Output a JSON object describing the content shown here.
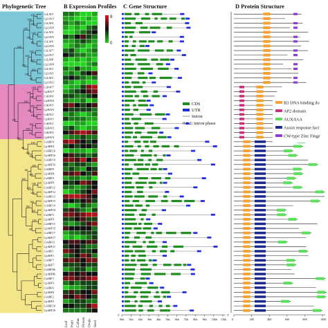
{
  "panels": {
    "a_title": "Phylogenetic Tree",
    "b_title": "B Expression Profiles",
    "c_title": "C Gene Structure",
    "d_title": "D Protein Structure"
  },
  "tree": {
    "leaves": [
      "CsLAV3",
      "CpLAV3",
      "CsLAV4",
      "CpLAV4",
      "CsLAV5",
      "CpLAV5",
      "CsLAV6",
      "CpLAV6",
      "CsLAV7",
      "CpLAV7",
      "CsLAV8",
      "CpLAV8",
      "CsLAV1",
      "CpLAV1",
      "CsLAV2",
      "CpLAV2",
      "CsRAV7",
      "CpRAV7",
      "CsRAV6",
      "CpRAV6",
      "CsRAV5",
      "CpRAV5",
      "CsRAV1",
      "CpRAV1",
      "CsRAV2",
      "CpRAV2",
      "CsRAV4",
      "CpRAV4",
      "CsARF4",
      "CpARF4",
      "CsARF16",
      "CpARF16",
      "CsARF10",
      "CpARF10",
      "CsARF8",
      "CpARF8",
      "CsARF9",
      "CpARF9",
      "CsARF12",
      "CpARF12",
      "CsARF13",
      "CpARF13",
      "CsARF14",
      "CpARF14",
      "CsARF5",
      "CpARF5",
      "CsARF15",
      "CpARF15",
      "CsARF17",
      "CpARF17",
      "CsARF11",
      "CpARF11",
      "CsARF1",
      "CpARF1",
      "CsARF7",
      "CpARF7",
      "CsARF8b",
      "CpARF8b",
      "CsARF3",
      "CpARF3",
      "CsARF6",
      "CpARF6",
      "CsARF2",
      "CpARF2",
      "CsARF18",
      "CpARF18"
    ],
    "bootstrap": [
      "100",
      "100",
      "100",
      "100",
      "80",
      "100",
      "100",
      "100",
      "100",
      "100",
      "100",
      "96",
      "100",
      "100",
      "100",
      "100",
      "98",
      "100",
      "100",
      "100",
      "100",
      "100",
      "100",
      "94",
      "100",
      "100",
      "100",
      "100",
      "98",
      "100",
      "100",
      "100",
      "100",
      "88",
      "100",
      "100",
      "100",
      "100",
      "100",
      "100",
      "100",
      "100",
      "85"
    ],
    "group_colors": [
      "#7dc8d8",
      "#e48ac0",
      "#f2e58a"
    ]
  },
  "expression": {
    "tissues": [
      "Leaf",
      "Fruit",
      "Callus",
      "Flower",
      "Ovule",
      "Seed"
    ],
    "color_scale": {
      "max_label": "8",
      "min_label": "0",
      "high": "#e6151b",
      "mid": "#111111",
      "low": "#22d61e"
    },
    "values": [
      [
        2,
        2,
        1,
        0,
        0,
        1
      ],
      [
        1,
        1,
        0,
        0,
        1,
        0
      ],
      [
        2,
        1,
        2,
        1,
        0,
        0
      ],
      [
        1,
        0,
        1,
        0,
        2,
        3
      ],
      [
        0,
        0,
        1,
        2,
        3,
        4
      ],
      [
        3,
        2,
        4,
        5,
        3,
        2
      ],
      [
        1,
        1,
        2,
        3,
        2,
        1
      ],
      [
        0,
        1,
        2,
        1,
        0,
        1
      ],
      [
        2,
        3,
        1,
        0,
        1,
        2
      ],
      [
        4,
        3,
        2,
        2,
        1,
        1
      ],
      [
        1,
        0,
        1,
        0,
        1,
        0
      ],
      [
        0,
        0,
        0,
        0,
        1,
        2
      ],
      [
        2,
        1,
        3,
        1,
        1,
        0
      ],
      [
        1,
        2,
        1,
        3,
        4,
        5
      ],
      [
        3,
        4,
        3,
        2,
        1,
        2
      ],
      [
        2,
        1,
        0,
        1,
        0,
        0
      ],
      [
        0,
        1,
        1,
        3,
        6,
        7
      ],
      [
        1,
        2,
        3,
        4,
        5,
        6
      ],
      [
        3,
        3,
        2,
        2,
        3,
        4
      ],
      [
        2,
        1,
        1,
        2,
        0,
        1
      ],
      [
        5,
        6,
        4,
        3,
        4,
        5
      ],
      [
        4,
        3,
        3,
        3,
        3,
        2
      ],
      [
        1,
        2,
        1,
        0,
        1,
        2
      ],
      [
        3,
        2,
        2,
        2,
        1,
        1
      ],
      [
        0,
        0,
        1,
        1,
        0,
        0
      ],
      [
        2,
        3,
        1,
        0,
        1,
        1
      ],
      [
        4,
        5,
        6,
        7,
        6,
        5
      ],
      [
        1,
        2,
        2,
        3,
        2,
        2
      ],
      [
        6,
        7,
        5,
        4,
        3,
        4
      ],
      [
        3,
        4,
        3,
        4,
        4,
        3
      ],
      [
        0,
        1,
        1,
        1,
        0,
        1
      ],
      [
        4,
        5,
        3,
        3,
        2,
        3
      ],
      [
        6,
        6,
        5,
        7,
        4,
        6
      ],
      [
        3,
        2,
        3,
        3,
        2,
        1
      ],
      [
        2,
        3,
        2,
        1,
        4,
        3
      ],
      [
        5,
        5,
        6,
        4,
        3,
        5
      ],
      [
        1,
        2,
        2,
        1,
        2,
        0
      ],
      [
        4,
        3,
        4,
        6,
        5,
        4
      ],
      [
        2,
        2,
        1,
        2,
        3,
        4
      ],
      [
        0,
        1,
        2,
        3,
        4,
        6
      ],
      [
        6,
        7,
        7,
        6,
        5,
        4
      ],
      [
        4,
        4,
        3,
        4,
        5,
        3
      ],
      [
        1,
        0,
        1,
        3,
        2,
        1
      ],
      [
        3,
        5,
        3,
        2,
        1,
        3
      ],
      [
        6,
        6,
        5,
        6,
        7,
        7
      ],
      [
        3,
        3,
        4,
        5,
        3,
        3
      ],
      [
        2,
        1,
        2,
        3,
        5,
        6
      ],
      [
        5,
        4,
        4,
        4,
        4,
        2
      ],
      [
        1,
        2,
        2,
        3,
        3,
        3
      ],
      [
        0,
        1,
        0,
        1,
        2,
        3
      ],
      [
        4,
        5,
        5,
        4,
        5,
        5
      ],
      [
        3,
        4,
        4,
        3,
        2,
        2
      ],
      [
        6,
        5,
        4,
        3,
        3,
        4
      ],
      [
        2,
        3,
        4,
        6,
        5,
        2
      ],
      [
        5,
        6,
        5,
        4,
        6,
        6
      ],
      [
        3,
        3,
        3,
        4,
        3,
        3
      ],
      [
        1,
        2,
        3,
        3,
        1,
        2
      ],
      [
        4,
        5,
        4,
        5,
        4,
        4
      ],
      [
        6,
        6,
        5,
        5,
        6,
        7
      ],
      [
        2,
        3,
        2,
        3,
        3,
        3
      ],
      [
        0,
        1,
        1,
        2,
        3,
        3
      ],
      [
        3,
        5,
        3,
        4,
        4,
        6
      ],
      [
        5,
        4,
        6,
        5,
        4,
        3
      ],
      [
        1,
        2,
        3,
        3,
        2,
        2
      ],
      [
        4,
        4,
        3,
        3,
        5,
        7
      ],
      [
        2,
        2,
        2,
        2,
        3,
        4
      ]
    ]
  },
  "gene": {
    "legend": [
      {
        "label": "CDS",
        "color": "#1e8c1e"
      },
      {
        "label": "UTR",
        "color": "#1e2ee0"
      },
      {
        "label": "Intron",
        "color": "#777777"
      },
      {
        "label": "0 1 2: intron phase",
        "color": ""
      }
    ],
    "axis_ticks": [
      "0kb",
      "1kb",
      "2kb",
      "3kb",
      "4kb",
      "5kb",
      "6kb",
      "7kb",
      "8kb",
      "9kb",
      "10kb",
      "11kb"
    ],
    "axis_end_left": "5'",
    "axis_end_right": "3'"
  },
  "protein": {
    "legend": [
      {
        "label": "B3 DNA binding do",
        "color": "#f4a233"
      },
      {
        "label": "AP2 domain",
        "color": "#d02a7c"
      },
      {
        "label": "AUX/IAA",
        "color": "#5ce05c"
      },
      {
        "label": "Auxin response fact",
        "color": "#1e2a8a"
      },
      {
        "label": "CW-type Zinc Finge",
        "color": "#8a3fd0"
      }
    ],
    "axis_ticks": [
      "0",
      "200",
      "400",
      "600",
      "800",
      "1000"
    ]
  }
}
